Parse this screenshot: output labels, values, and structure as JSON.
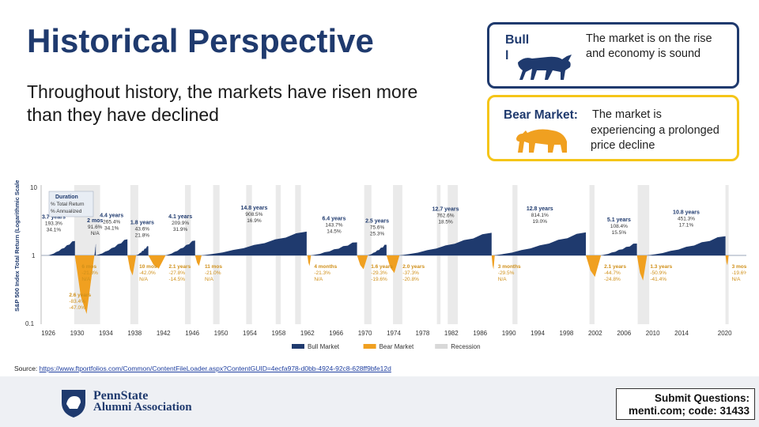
{
  "slide": {
    "title": "Historical Perspective",
    "subtitle": "Throughout history, the markets have risen more than they have declined"
  },
  "bull_box": {
    "label": "Bull",
    "label_cont": "l",
    "description": "The market is on the rise and economy is sound",
    "icon": "bull-icon"
  },
  "bear_box": {
    "label": "Bear Market:",
    "description_1": "The market is",
    "description_2": "experiencing a prolonged price decline",
    "icon": "bear-icon"
  },
  "colors": {
    "bull": "#1f3a6e",
    "bear": "#f0a020",
    "recession": "#d8d8d8",
    "bull_border": "#1f3a6e",
    "bear_border": "#f5c518"
  },
  "chart_data": {
    "type": "area",
    "ylabel": "S&P 500 Index Total Return (Logarithmic Scale)",
    "yticks": [
      "10",
      "1",
      "0.1"
    ],
    "xticks": [
      "1926",
      "1930",
      "1934",
      "1938",
      "1942",
      "1946",
      "1950",
      "1954",
      "1958",
      "1962",
      "1966",
      "1970",
      "1974",
      "1978",
      "1982",
      "1986",
      "1990",
      "1994",
      "1998",
      "2002",
      "2006",
      "2010",
      "2014",
      "2020"
    ],
    "legend": [
      {
        "name": "Bull Market",
        "color": "#1f3a6e"
      },
      {
        "name": "Bear Market",
        "color": "#f0a020"
      },
      {
        "name": "Recession",
        "color": "#d8d8d8"
      }
    ],
    "key": {
      "title": "Duration",
      "line2": "% Total Return",
      "line3": "% Annualized"
    },
    "bull_markets": [
      {
        "duration": "3.7 years",
        "total": "193.3%",
        "annual": "34.1%",
        "start": 1926,
        "end": 1929.7
      },
      {
        "duration": "2 mos",
        "total": "91.6%",
        "annual": "N/A",
        "start": 1932.4,
        "end": 1932.6
      },
      {
        "duration": "4.4 years",
        "total": "265.4%",
        "annual": "34.1%",
        "start": 1932.6,
        "end": 1937
      },
      {
        "duration": "1.8 years",
        "total": "43.6%",
        "annual": "21.8%",
        "start": 1938.2,
        "end": 1939.9
      },
      {
        "duration": "4.1 years",
        "total": "209.9%",
        "annual": "31.9%",
        "start": 1942.3,
        "end": 1946.4
      },
      {
        "duration": "14.8 years",
        "total": "908.5%",
        "annual": "16.9%",
        "start": 1947.3,
        "end": 1961.9
      },
      {
        "duration": "6.4 years",
        "total": "143.7%",
        "annual": "14.5%",
        "start": 1962.5,
        "end": 1968.9
      },
      {
        "duration": "2.5 years",
        "total": "75.6%",
        "annual": "25.3%",
        "start": 1970.4,
        "end": 1973
      },
      {
        "duration": "12.7 years",
        "total": "762.6%",
        "annual": "18.5%",
        "start": 1974.8,
        "end": 1987.6
      },
      {
        "duration": "12.8 years",
        "total": "814.1%",
        "annual": "19.0%",
        "start": 1987.9,
        "end": 2000.7
      },
      {
        "duration": "5.1 years",
        "total": "108.4%",
        "annual": "15.5%",
        "start": 2002.8,
        "end": 2007.8
      },
      {
        "duration": "10.8 years",
        "total": "451.3%",
        "annual": "17.1%",
        "start": 2009.2,
        "end": 2020.1
      }
    ],
    "bear_markets": [
      {
        "duration": "6 mos",
        "total": "-21.8%",
        "annual": "N/A",
        "start": 1929.7,
        "end": 1930.2
      },
      {
        "duration": "2.6 years",
        "total": "-83.4%",
        "annual": "-47.0%",
        "start": 1929.7,
        "end": 1932.4
      },
      {
        "duration": "10 mos",
        "total": "-42.0%",
        "annual": "N/A",
        "start": 1937,
        "end": 1938.2
      },
      {
        "duration": "2.1 years",
        "total": "-27.8%",
        "annual": "-14.5%",
        "start": 1939.9,
        "end": 1942.3
      },
      {
        "duration": "11 mos",
        "total": "-21.0%",
        "annual": "N/A",
        "start": 1946.4,
        "end": 1947.3
      },
      {
        "duration": "4 months",
        "total": "-21.3%",
        "annual": "N/A",
        "start": 1962,
        "end": 1962.5
      },
      {
        "duration": "1.6 years",
        "total": "-29.3%",
        "annual": "-19.6%",
        "start": 1968.9,
        "end": 1970.4
      },
      {
        "duration": "2.0 years",
        "total": "-37.3%",
        "annual": "-20.8%",
        "start": 1973,
        "end": 1974.8
      },
      {
        "duration": "3 months",
        "total": "-29.5%",
        "annual": "N/A",
        "start": 1987.6,
        "end": 1987.9
      },
      {
        "duration": "2.1 years",
        "total": "-44.7%",
        "annual": "-24.8%",
        "start": 2000.7,
        "end": 2002.8
      },
      {
        "duration": "1.3 years",
        "total": "-50.9%",
        "annual": "-41.4%",
        "start": 2007.8,
        "end": 2009.2
      },
      {
        "duration": "3 mos",
        "total": "-19.6%",
        "annual": "N/A",
        "start": 2020.1,
        "end": 2020.3
      }
    ]
  },
  "source": {
    "prefix": "Source: ",
    "url": "https://www.ftportfolios.com/Common/ContentFileLoader.aspx?ContentGUID=4ecfa978-d0bb-4924-92c8-628ff9bfe12d"
  },
  "footer": {
    "logo_line1": "PennState",
    "logo_line2": "Alumni Association",
    "submit_line1": "Submit Questions:",
    "submit_line2": "menti.com; code: 31433"
  }
}
